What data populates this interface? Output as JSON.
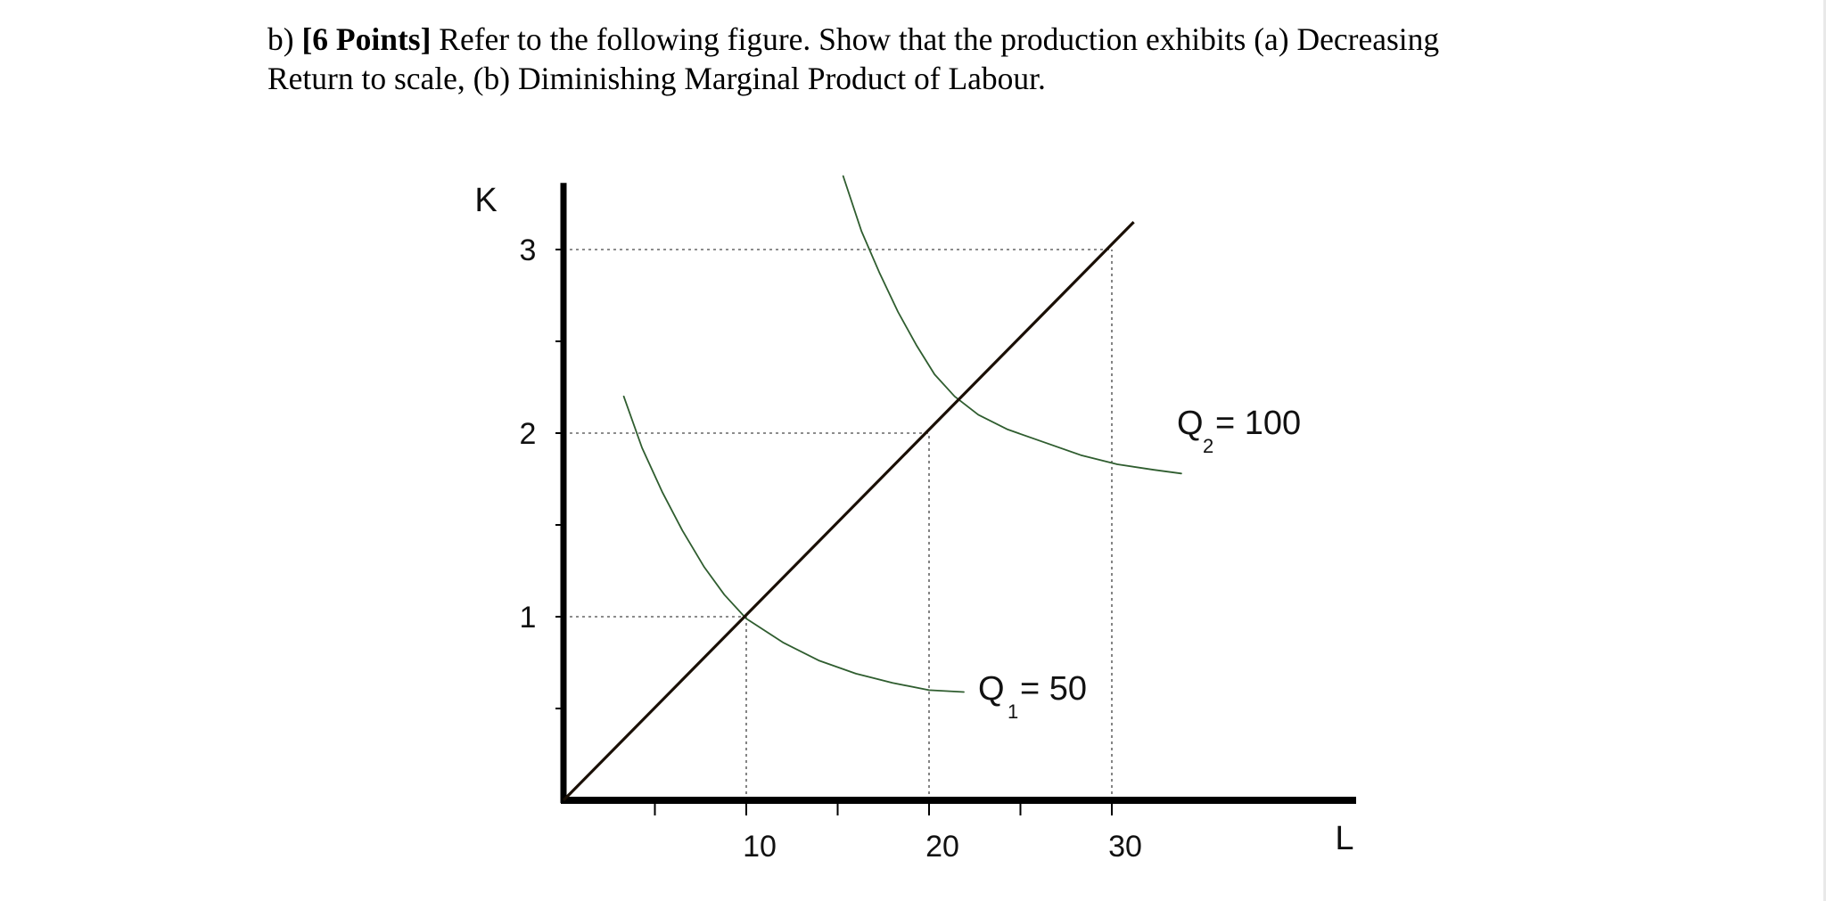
{
  "question": {
    "part": "b)",
    "points": "[6 Points]",
    "line1_rest": "Refer to the following figure. Show that the production exhibits (a) Decreasing",
    "line2": "Return to scale, (b) Diminishing Marginal Product of Labour."
  },
  "chart_data": {
    "type": "line",
    "title": "",
    "xlabel": "L",
    "ylabel": "K",
    "xlim": [
      0,
      42
    ],
    "ylim": [
      0,
      3.3
    ],
    "x_ticks": [
      5,
      10,
      15,
      20,
      25,
      30
    ],
    "x_tick_labels": [
      {
        "x": 10,
        "label": "10"
      },
      {
        "x": 20,
        "label": "20"
      },
      {
        "x": 30,
        "label": "30"
      }
    ],
    "y_ticks": [
      0.5,
      1,
      1.5,
      2,
      2.5,
      3
    ],
    "y_tick_labels": [
      {
        "y": 1,
        "label": "1"
      },
      {
        "y": 2,
        "label": "2"
      },
      {
        "y": 3,
        "label": "3"
      }
    ],
    "grid": false,
    "reference_lines": [
      {
        "type": "horizontal",
        "y": 3,
        "from_x": 0,
        "to_x": 30
      },
      {
        "type": "horizontal",
        "y": 2,
        "from_x": 0,
        "to_x": 20
      },
      {
        "type": "horizontal",
        "y": 1,
        "from_x": 0,
        "to_x": 10
      },
      {
        "type": "vertical",
        "x": 10,
        "from_y": 0,
        "to_y": 1
      },
      {
        "type": "vertical",
        "x": 20,
        "from_y": 0,
        "to_y": 2
      },
      {
        "type": "vertical",
        "x": 30,
        "from_y": 0,
        "to_y": 3
      }
    ],
    "ray": {
      "x": [
        0,
        31.2
      ],
      "y": [
        0,
        3.15
      ]
    },
    "series": [
      {
        "label_main": "Q",
        "label_sub": "1",
        "label_value": " = 50",
        "x": [
          3.3,
          4.3,
          5.4,
          6.5,
          7.7,
          8.8,
          10.0,
          12.0,
          14.0,
          16.0,
          18.0,
          20.0,
          21.9
        ],
        "y": [
          2.2,
          1.92,
          1.68,
          1.47,
          1.27,
          1.12,
          0.99,
          0.86,
          0.76,
          0.69,
          0.64,
          0.6,
          0.59
        ]
      },
      {
        "label_main": "Q",
        "label_sub": "2",
        "label_value": " = 100",
        "x": [
          15.3,
          16.3,
          17.3,
          18.3,
          19.3,
          20.3,
          21.4,
          22.7,
          24.3,
          26.3,
          28.3,
          30.3,
          32.3,
          33.8
        ],
        "y": [
          3.4,
          3.1,
          2.87,
          2.66,
          2.48,
          2.32,
          2.2,
          2.1,
          2.02,
          1.95,
          1.88,
          1.83,
          1.8,
          1.78
        ]
      }
    ],
    "colors": {
      "axis": "#000000",
      "ray": "#1a0f05",
      "curve": "#2f5d2f",
      "dotted": "#666666"
    }
  }
}
